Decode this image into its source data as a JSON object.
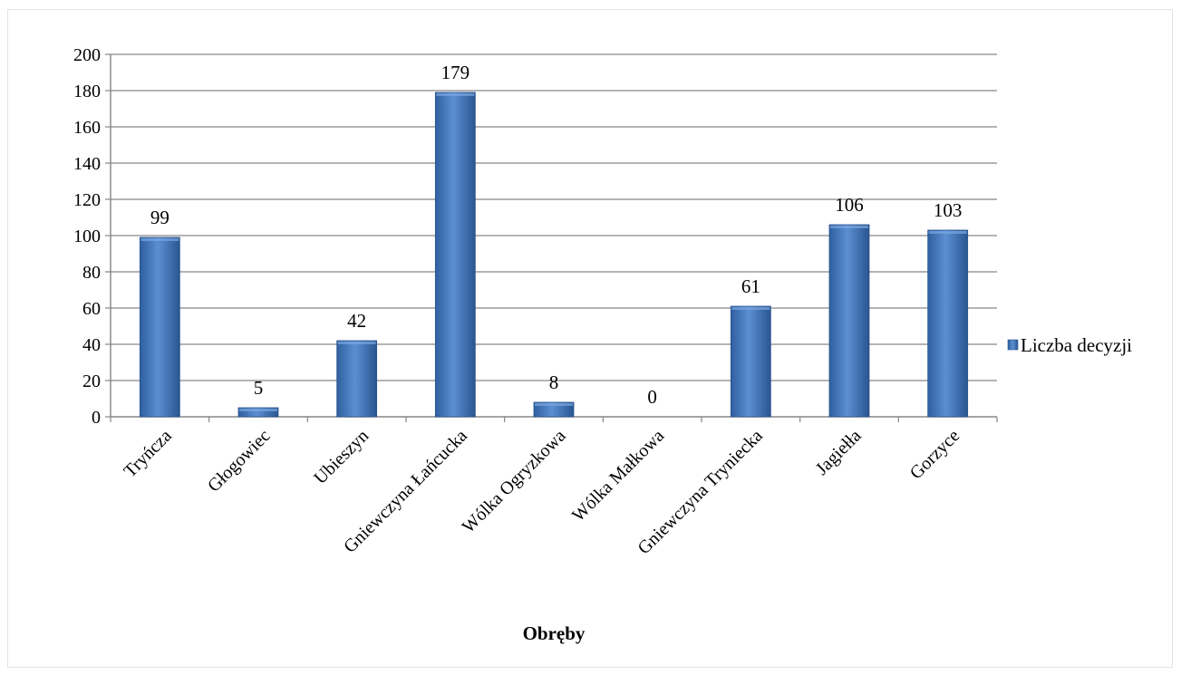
{
  "chart_data": {
    "type": "bar",
    "categories": [
      "Tryńcza",
      "Głogowiec",
      "Ubieszyn",
      "Gniewczyna Łańcucka",
      "Wólka Ogryzkowa",
      "Wólka Małkowa",
      "Gniewczyna Tryniecka",
      "Jagiełła",
      "Gorzyce"
    ],
    "series": [
      {
        "name": "Liczba decyzji",
        "values": [
          99,
          5,
          42,
          179,
          8,
          0,
          61,
          106,
          103
        ],
        "color": "#4f81bd"
      }
    ],
    "data_labels": [
      "99",
      "5",
      "42",
      "179",
      "8",
      "0",
      "61",
      "106",
      "103"
    ],
    "xlabel": "Obręby",
    "ylabel": "",
    "ylim": [
      0,
      200
    ],
    "yticks": [
      0,
      20,
      40,
      60,
      80,
      100,
      120,
      140,
      160,
      180,
      200
    ],
    "grid": true,
    "legend_position": "right"
  }
}
